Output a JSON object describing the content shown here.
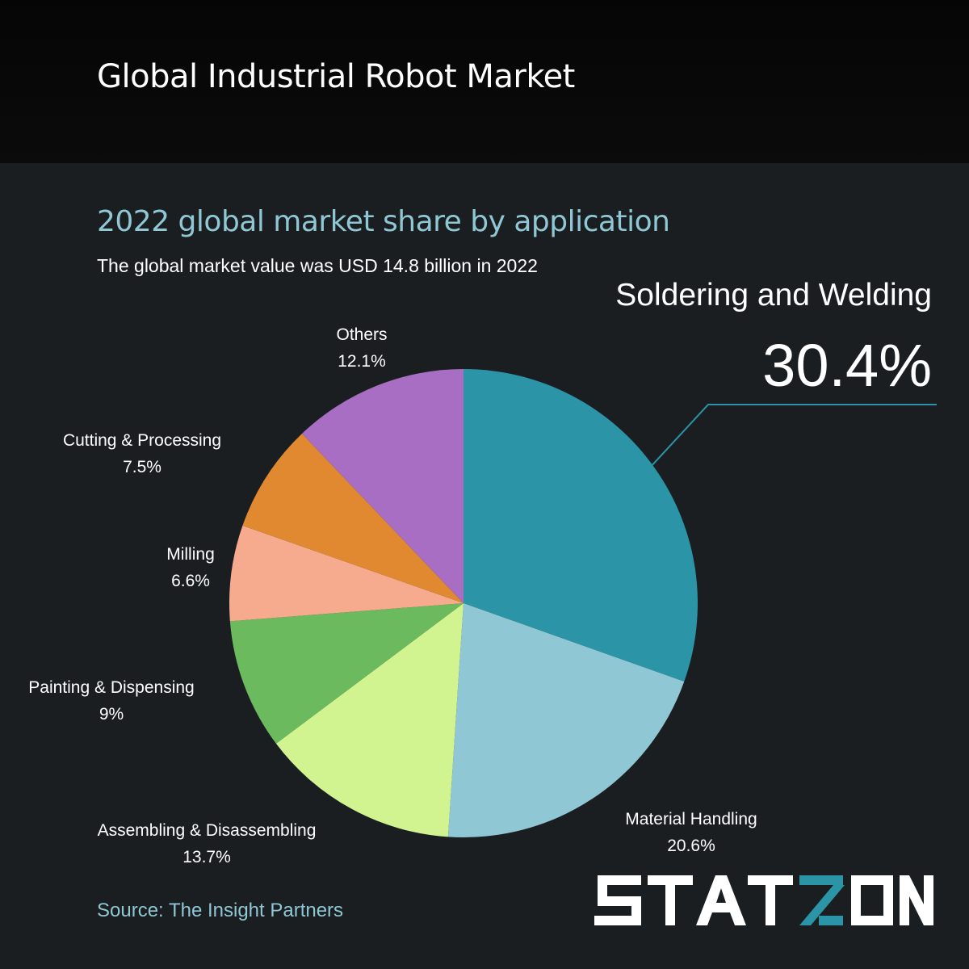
{
  "header": {
    "title": "Global Industrial Robot Market"
  },
  "chart_data": {
    "type": "pie",
    "title": "2022 global market share by application",
    "subtitle": "The global market value was USD 14.8 billion in 2022",
    "unit": "%",
    "categories": [
      "Soldering and Welding",
      "Material Handling",
      "Assembling & Disassembling",
      "Painting & Dispensing",
      "Milling",
      "Cutting & Processing",
      "Others"
    ],
    "values": [
      30.4,
      20.6,
      13.7,
      9,
      6.6,
      7.5,
      12.1
    ],
    "value_labels": [
      "30.4%",
      "20.6%",
      "13.7%",
      "9%",
      "6.6%",
      "7.5%",
      "12.1%"
    ],
    "colors": [
      "#2b94a7",
      "#8fc7d4",
      "#d1f491",
      "#6cba5e",
      "#f6ab8f",
      "#e08931",
      "#a86ec3"
    ],
    "start": "12 o'clock",
    "direction": "clockwise",
    "highlight": {
      "name": "Soldering and Welding",
      "value": "30.4%",
      "color": "#2b94a7"
    },
    "source": "Source: The Insight Partners"
  },
  "brand": {
    "logo_text": "STATZON",
    "accent_color": "#2b94a7"
  }
}
